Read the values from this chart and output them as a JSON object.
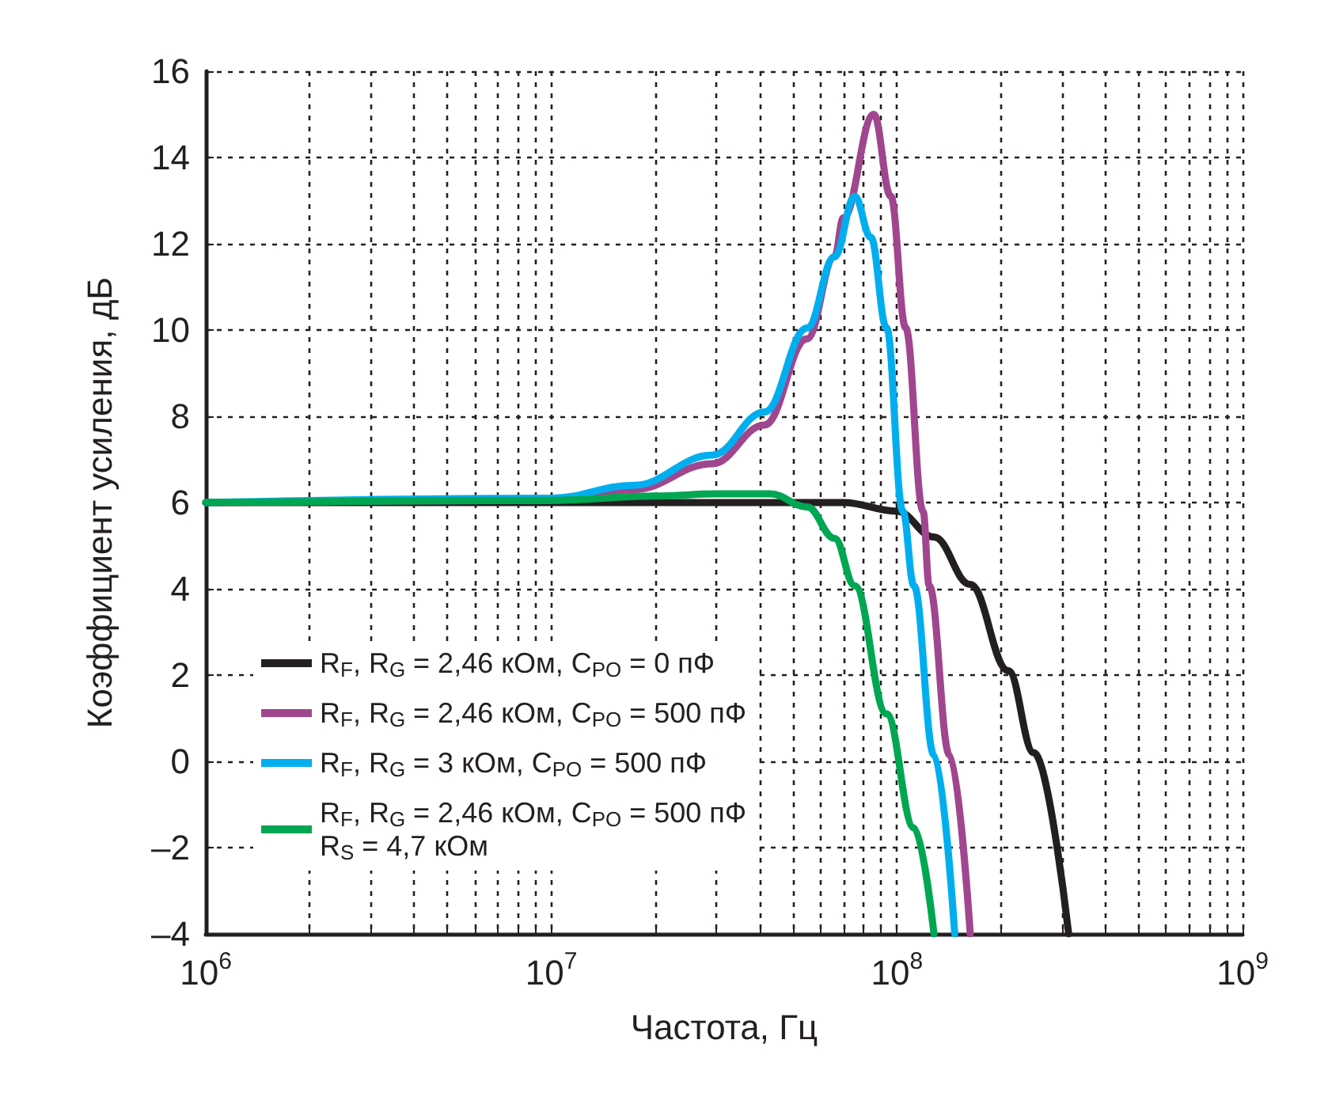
{
  "chart_data": {
    "type": "line",
    "xlabel": "Частота, Гц",
    "ylabel": "Коэффициент усиления, дБ",
    "log": "x",
    "grid": true,
    "legend": "bottom left",
    "line_style": "solid",
    "marker": "none",
    "xlim": [
      1000000,
      1000000000
    ],
    "xticks": [
      {
        "value": 1000000,
        "label": "10$^{6}$"
      },
      {
        "value": 2000000,
        "label": null
      },
      {
        "value": 3000000,
        "label": null
      },
      {
        "value": 4000000,
        "label": null
      },
      {
        "value": 5000000,
        "label": null
      },
      {
        "value": 6000000,
        "label": null
      },
      {
        "value": 7000000,
        "label": null
      },
      {
        "value": 8000000,
        "label": null
      },
      {
        "value": 9000000,
        "label": null
      },
      {
        "value": 10000000,
        "label": "10$^{7}$"
      },
      {
        "value": 20000000,
        "label": null
      },
      {
        "value": 30000000,
        "label": null
      },
      {
        "value": 40000000,
        "label": null
      },
      {
        "value": 50000000,
        "label": null
      },
      {
        "value": 60000000,
        "label": null
      },
      {
        "value": 70000000,
        "label": null
      },
      {
        "value": 80000000,
        "label": null
      },
      {
        "value": 90000000,
        "label": null
      },
      {
        "value": 100000000,
        "label": "10$^{8}$"
      },
      {
        "value": 200000000,
        "label": null
      },
      {
        "value": 300000000,
        "label": null
      },
      {
        "value": 400000000,
        "label": null
      },
      {
        "value": 500000000,
        "label": null
      },
      {
        "value": 600000000,
        "label": null
      },
      {
        "value": 700000000,
        "label": null
      },
      {
        "value": 800000000,
        "label": null
      },
      {
        "value": 900000000,
        "label": null
      },
      {
        "value": 1000000000,
        "label": "10$^{9}$"
      }
    ],
    "ylim": [
      -4,
      16
    ],
    "yticks": [
      {
        "value": -4,
        "label": "–4"
      },
      {
        "value": -2,
        "label": "–2"
      },
      0,
      2,
      4,
      6,
      8,
      10,
      12,
      14,
      16
    ],
    "series": [
      {
        "name": "R$_{F}$, R$_{G}$ = 2,46 кОм, C$_{PO}$ = 0 пФ",
        "color": "#231f20",
        "x": [
          1000000,
          10000000,
          50000000,
          70000000,
          100000000,
          128000000,
          163000000,
          210000000,
          249000000,
          314000000
        ],
        "values": [
          6,
          6,
          6,
          6,
          5.8,
          5.2,
          4.1,
          2.1,
          0.2,
          -4
        ]
      },
      {
        "name": "R$_{F}$, R$_{G}$ = 2,46 кОм, C$_{PO}$ = 500 пФ",
        "color": "#a0468e",
        "x": [
          1000000,
          10000000,
          17300000,
          29200000,
          41400000,
          55000000,
          66000000,
          70000000,
          85700000,
          96000000,
          106000000,
          119000000,
          124000000,
          142000000,
          163000000
        ],
        "values": [
          6,
          6.05,
          6.3,
          6.9,
          7.8,
          9.8,
          11.7,
          12.6,
          15,
          13.1,
          10.05,
          5.8,
          4.07,
          0.15,
          -4
        ]
      },
      {
        "name": "R$_{F}$, R$_{G}$ = 3 кОм, C$_{PO}$ = 500 пФ",
        "color": "#00aeef",
        "x": [
          1000000,
          10000000,
          17300000,
          29200000,
          41400000,
          55000000,
          66000000,
          75500000,
          84000000,
          93300000,
          104000000,
          112000000,
          128000000,
          147000000
        ],
        "values": [
          6,
          6.1,
          6.4,
          7.1,
          8.1,
          10.05,
          11.7,
          13.1,
          12.15,
          10.05,
          5.8,
          4.07,
          0.15,
          -4
        ]
      },
      {
        "name": "R$_{F}$, R$_{G}$ = 2,46 кОм, C$_{PO}$ = 500 пФ\nR$_{S}$ = 4,7 кОм",
        "color": "#00a651",
        "x": [
          1000000,
          10000000,
          20000000,
          30000000,
          43000000,
          55000000,
          66000000,
          75500000,
          93300000,
          112000000,
          128000000
        ],
        "values": [
          6,
          6.05,
          6.15,
          6.2,
          6.2,
          5.9,
          5.17,
          4.07,
          1.1,
          -1.54,
          -4
        ]
      }
    ]
  }
}
